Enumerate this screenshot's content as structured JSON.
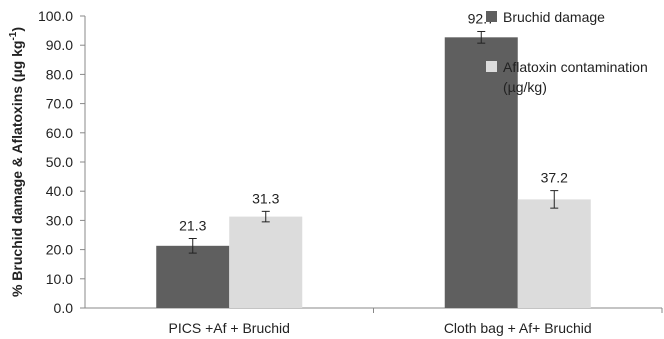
{
  "chart_data": {
    "type": "bar",
    "categories": [
      "PICS +Af + Bruchid",
      "Cloth bag + Af+ Bruchid"
    ],
    "series": [
      {
        "name": "Bruchid damage",
        "values": [
          21.3,
          92.7
        ],
        "error": [
          2.5,
          2.0
        ],
        "labels": [
          "21.3",
          "92.7"
        ],
        "color": "#5f5f5f"
      },
      {
        "name": "Aflatoxin contamination (µg/kg)",
        "name_lines": [
          "Aflatoxin contamination",
          "(µg/kg)"
        ],
        "values": [
          31.3,
          37.2
        ],
        "error": [
          1.8,
          3.0
        ],
        "labels": [
          "31.3",
          "37.2"
        ],
        "color": "#dcdcdc"
      }
    ],
    "ylabel_main": "% Bruchid damage & Aflatoxins (µg kg",
    "ylabel_sup": "-1",
    "ylabel_end": ")",
    "ylim": [
      0,
      100
    ],
    "yticks": [
      0,
      10,
      20,
      30,
      40,
      50,
      60,
      70,
      80,
      90,
      100
    ],
    "ytick_labels": [
      "0.0",
      "10.0",
      "20.0",
      "30.0",
      "40.0",
      "50.0",
      "60.0",
      "70.0",
      "80.0",
      "90.0",
      "100.0"
    ],
    "grid": false,
    "legend_position": "top-right"
  }
}
